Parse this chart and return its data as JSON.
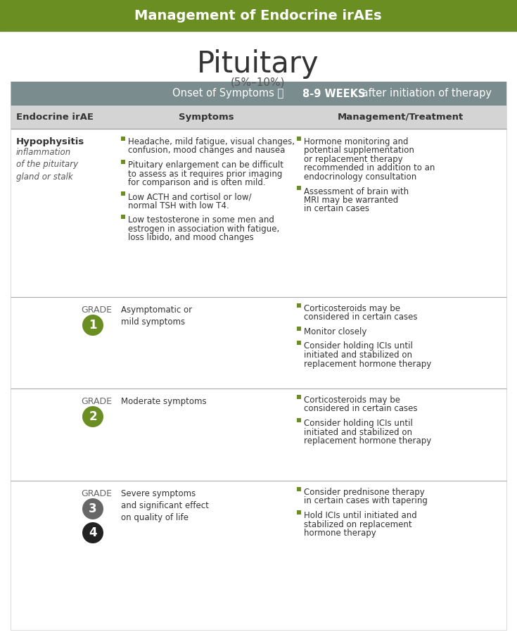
{
  "title": "Management of Endocrine irAEs",
  "subtitle": "Pituitary",
  "subtitle2": "(5%–10%)",
  "header_bg": "#6b8e23",
  "header_text_color": "#ffffff",
  "onset_bar_bg": "#7a8c8d",
  "col_headers": [
    "Endocrine irAE",
    "Symptoms",
    "Management/Treatment"
  ],
  "col_header_bg": "#d4d4d4",
  "col_header_text_color": "#333333",
  "green_bullet": "#6b8e23",
  "bg_color": "#ffffff",
  "hypo_title": "Hypophysitis",
  "hypo_subtitle": "inflammation\nof the pituitary\ngland or stalk",
  "hypo_symptoms": [
    "Headache, mild fatigue, visual changes,\nconfusion, mood changes and nausea",
    "Pituitary enlargement can be difficult\nto assess as it requires prior imaging\nfor comparison and is often mild.",
    "Low ACTH and cortisol or low/\nnormal TSH with low T4.",
    "Low testosterone in some men and\nestrogen in association with fatigue,\nloss libido, and mood changes"
  ],
  "hypo_management": [
    "Hormone monitoring and\npotential supplementation\nor replacement therapy\nrecommended in addition to an\nendocrinology consultation",
    "Assessment of brain with\nMRI may be warranted\nin certain cases"
  ],
  "grade1_symptom": "Asymptomatic or\nmild symptoms",
  "grade1_management": [
    "Corticosteroids may be\nconsidered in certain cases",
    "Monitor closely",
    "Consider holding ICIs until\ninitiated and stabilized on\nreplacement hormone therapy"
  ],
  "grade1_circle_color": "#6b8e23",
  "grade1_circle_text_color": "#ffffff",
  "grade2_symptom": "Moderate symptoms",
  "grade2_management": [
    "Corticosteroids may be\nconsidered in certain cases",
    "Consider holding ICIs until\ninitiated and stabilized on\nreplacement hormone therapy"
  ],
  "grade2_circle_color": "#6b8e23",
  "grade2_circle_text_color": "#ffffff",
  "grade3_symptom": "Severe symptoms\nand significant effect\non quality of life",
  "grade3_management": [
    "Consider prednisone therapy\nin certain cases with tapering",
    "Hold ICIs until initiated and\nstabilized on replacement\nhormone therapy"
  ],
  "grade3_circle_color": "#666666",
  "grade3_circle_text_color": "#ffffff",
  "grade4_circle_color": "#222222",
  "grade4_circle_text_color": "#ffffff"
}
